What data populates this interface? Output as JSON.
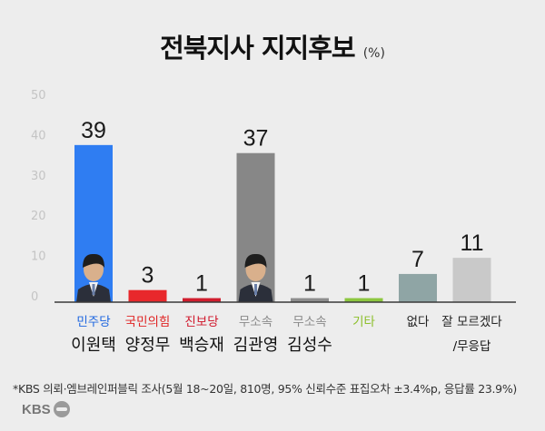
{
  "header": {
    "title": "전북지사 지지후보",
    "unit": "(%)"
  },
  "chart_data": {
    "type": "bar",
    "title": "전북지사 지지후보",
    "ylim": [
      0,
      50
    ],
    "yticks": [
      0,
      10,
      20,
      30,
      40,
      50
    ],
    "grid": false,
    "categories": [
      {
        "party": "민주당",
        "candidate": "이원택",
        "value": 39,
        "color": "#2f7df2",
        "label_color": "#1f67e0",
        "photo": true
      },
      {
        "party": "국민의힘",
        "candidate": "양정무",
        "value": 3,
        "color": "#e8282c",
        "label_color": "#e02424",
        "photo": false
      },
      {
        "party": "진보당",
        "candidate": "백승재",
        "value": 1,
        "color": "#d01d2e",
        "label_color": "#d0162a",
        "photo": false
      },
      {
        "party": "무소속",
        "candidate": "김관영",
        "value": 37,
        "color": "#878787",
        "label_color": "#8a8a8a",
        "photo": true
      },
      {
        "party": "무소속",
        "candidate": "김성수",
        "value": 1,
        "color": "#8c8c8c",
        "label_color": "#8a8a8a",
        "photo": false
      },
      {
        "party": "기타",
        "candidate": "",
        "value": 1,
        "color": "#8cc63f",
        "label_color": "#8cbf2a",
        "photo": false
      },
      {
        "party": "없다",
        "candidate": "",
        "value": 7,
        "color": "#8fa5a5",
        "label_color": "#222222",
        "photo": false
      },
      {
        "party": "잘 모르겠다",
        "candidate": "/무응답",
        "value": 11,
        "color": "#c9c9c9",
        "label_color": "#222222",
        "photo": false
      }
    ]
  },
  "footnote": "*KBS 의뢰·엠브레인퍼블릭 조사(5월 18~20일, 810명, 95% 신뢰수준 표집오차 ±3.4%p, 응답률 23.9%)",
  "logo": {
    "text": "KBS"
  }
}
